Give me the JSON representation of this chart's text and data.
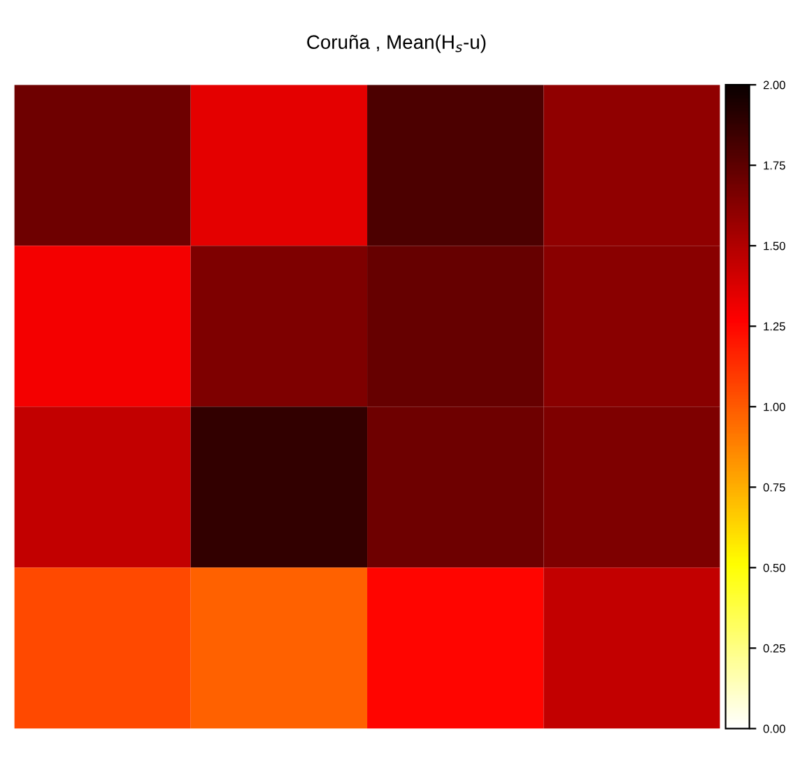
{
  "chart_data": {
    "type": "heatmap",
    "title": "Coruña , Mean(H$_{s}$-u)",
    "categories": [
      null,
      null,
      null,
      null
    ],
    "y_categories": [
      null,
      null,
      null,
      null
    ],
    "cells": [
      [
        1.7,
        1.35,
        1.8,
        1.6
      ],
      [
        1.3,
        1.65,
        1.72,
        1.62
      ],
      [
        1.45,
        1.88,
        1.7,
        1.65
      ],
      [
        1.05,
        0.98,
        1.25,
        1.45
      ]
    ],
    "clim": [
      0,
      2
    ],
    "cticks": [
      {
        "value": 0,
        "label": "0.00"
      },
      {
        "value": 0.25,
        "label": "0.25"
      },
      {
        "value": 0.5,
        "label": "0.50"
      },
      {
        "value": 0.75,
        "label": "0.75"
      },
      {
        "value": 1,
        "label": "1.00"
      },
      {
        "value": 1.25,
        "label": "1.25"
      },
      {
        "value": 1.5,
        "label": "1.50"
      },
      {
        "value": 1.75,
        "label": "1.75"
      },
      {
        "value": 2,
        "label": "2.00"
      }
    ]
  }
}
